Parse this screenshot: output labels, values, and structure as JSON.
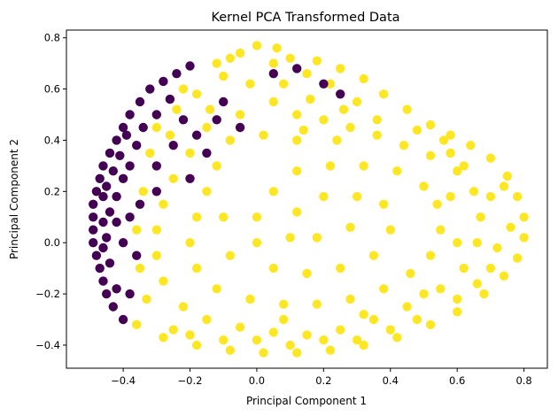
{
  "chart_data": {
    "type": "scatter",
    "title": "Kernel PCA Transformed Data",
    "xlabel": "Principal Component 1",
    "ylabel": "Principal Component 2",
    "xlim": [
      -0.57,
      0.87
    ],
    "ylim": [
      -0.49,
      0.83
    ],
    "xticks": [
      -0.4,
      -0.2,
      0.0,
      0.2,
      0.4,
      0.6,
      0.8
    ],
    "xtick_labels": [
      "−0.4",
      "−0.2",
      "0.0",
      "0.2",
      "0.4",
      "0.6",
      "0.8"
    ],
    "yticks": [
      -0.4,
      -0.2,
      0.0,
      0.2,
      0.4,
      0.6,
      0.8
    ],
    "ytick_labels": [
      "−0.4",
      "−0.2",
      "0.0",
      "0.2",
      "0.4",
      "0.6",
      "0.8"
    ],
    "grid": false,
    "legend": "none",
    "colors": {
      "class_0": "#440154",
      "class_1": "#fde725"
    },
    "series": [
      {
        "color": "#fde725",
        "points": [
          [
            0.0,
            0.77
          ],
          [
            -0.05,
            0.74
          ],
          [
            0.06,
            0.76
          ],
          [
            -0.12,
            0.7
          ],
          [
            0.1,
            0.72
          ],
          [
            0.18,
            0.71
          ],
          [
            0.25,
            0.68
          ],
          [
            0.32,
            0.64
          ],
          [
            0.38,
            0.58
          ],
          [
            0.45,
            0.52
          ],
          [
            0.52,
            0.46
          ],
          [
            0.58,
            0.42
          ],
          [
            0.64,
            0.38
          ],
          [
            0.7,
            0.33
          ],
          [
            0.75,
            0.26
          ],
          [
            0.78,
            0.18
          ],
          [
            0.8,
            0.1
          ],
          [
            0.8,
            0.02
          ],
          [
            0.78,
            -0.06
          ],
          [
            0.74,
            -0.13
          ],
          [
            0.68,
            -0.2
          ],
          [
            0.6,
            -0.27
          ],
          [
            0.52,
            -0.32
          ],
          [
            0.42,
            -0.37
          ],
          [
            0.32,
            -0.4
          ],
          [
            0.22,
            -0.42
          ],
          [
            0.12,
            -0.43
          ],
          [
            0.02,
            -0.43
          ],
          [
            -0.08,
            -0.42
          ],
          [
            -0.18,
            -0.4
          ],
          [
            -0.28,
            -0.37
          ],
          [
            -0.36,
            -0.32
          ],
          [
            -0.3,
            0.45
          ],
          [
            -0.24,
            0.52
          ],
          [
            -0.18,
            0.58
          ],
          [
            -0.1,
            0.65
          ],
          [
            0.05,
            0.7
          ],
          [
            0.15,
            0.66
          ],
          [
            0.22,
            0.62
          ],
          [
            0.3,
            0.55
          ],
          [
            0.05,
            0.55
          ],
          [
            0.12,
            0.5
          ],
          [
            -0.05,
            0.5
          ],
          [
            -0.15,
            0.45
          ],
          [
            -0.2,
            0.35
          ],
          [
            -0.25,
            0.25
          ],
          [
            -0.28,
            0.15
          ],
          [
            -0.3,
            0.05
          ],
          [
            -0.3,
            -0.05
          ],
          [
            -0.28,
            -0.15
          ],
          [
            -0.22,
            -0.25
          ],
          [
            -0.15,
            -0.3
          ],
          [
            -0.05,
            -0.33
          ],
          [
            0.05,
            -0.35
          ],
          [
            0.15,
            -0.36
          ],
          [
            0.25,
            -0.34
          ],
          [
            0.35,
            -0.3
          ],
          [
            0.45,
            -0.25
          ],
          [
            0.55,
            -0.18
          ],
          [
            0.62,
            -0.1
          ],
          [
            0.66,
            0.0
          ],
          [
            0.67,
            0.1
          ],
          [
            0.65,
            0.2
          ],
          [
            0.6,
            0.28
          ],
          [
            0.52,
            0.34
          ],
          [
            0.44,
            0.38
          ],
          [
            0.36,
            0.42
          ],
          [
            0.28,
            0.45
          ],
          [
            0.2,
            0.48
          ],
          [
            0.12,
            0.4
          ],
          [
            0.02,
            0.42
          ],
          [
            -0.08,
            0.4
          ],
          [
            -0.12,
            0.3
          ],
          [
            -0.15,
            0.2
          ],
          [
            -0.18,
            0.1
          ],
          [
            -0.2,
            0.0
          ],
          [
            -0.18,
            -0.1
          ],
          [
            -0.12,
            -0.18
          ],
          [
            -0.02,
            -0.22
          ],
          [
            0.08,
            -0.24
          ],
          [
            0.18,
            -0.24
          ],
          [
            0.28,
            -0.22
          ],
          [
            0.38,
            -0.18
          ],
          [
            0.46,
            -0.12
          ],
          [
            0.52,
            -0.05
          ],
          [
            0.55,
            0.05
          ],
          [
            0.54,
            0.15
          ],
          [
            0.5,
            0.22
          ],
          [
            0.42,
            0.28
          ],
          [
            0.32,
            0.3
          ],
          [
            0.22,
            0.3
          ],
          [
            0.12,
            0.28
          ],
          [
            0.05,
            0.2
          ],
          [
            0.0,
            0.1
          ],
          [
            0.0,
            0.0
          ],
          [
            0.05,
            -0.1
          ],
          [
            0.15,
            -0.12
          ],
          [
            0.25,
            -0.1
          ],
          [
            0.35,
            -0.05
          ],
          [
            0.4,
            0.05
          ],
          [
            0.38,
            0.15
          ],
          [
            0.3,
            0.18
          ],
          [
            0.2,
            0.18
          ],
          [
            0.12,
            0.12
          ],
          [
            0.1,
            0.02
          ],
          [
            0.18,
            0.02
          ],
          [
            0.28,
            0.06
          ],
          [
            -0.1,
            0.1
          ],
          [
            -0.08,
            -0.05
          ],
          [
            0.58,
            0.35
          ],
          [
            0.7,
            0.18
          ],
          [
            0.72,
            -0.02
          ],
          [
            0.66,
            -0.16
          ],
          [
            0.48,
            -0.3
          ],
          [
            0.3,
            -0.38
          ],
          [
            0.1,
            -0.4
          ],
          [
            -0.1,
            -0.38
          ],
          [
            -0.25,
            -0.34
          ],
          [
            -0.32,
            0.35
          ],
          [
            -0.34,
            0.2
          ],
          [
            -0.36,
            0.05
          ],
          [
            -0.35,
            -0.1
          ],
          [
            -0.33,
            -0.22
          ],
          [
            -0.26,
            0.42
          ],
          [
            -0.22,
            0.6
          ],
          [
            -0.08,
            0.72
          ],
          [
            0.08,
            0.62
          ],
          [
            0.16,
            0.56
          ],
          [
            0.26,
            0.52
          ],
          [
            0.36,
            0.48
          ],
          [
            0.48,
            0.44
          ],
          [
            0.56,
            0.4
          ],
          [
            0.62,
            0.3
          ],
          [
            0.74,
            0.22
          ],
          [
            0.76,
            0.06
          ],
          [
            0.7,
            -0.1
          ],
          [
            0.6,
            -0.22
          ],
          [
            0.4,
            -0.34
          ],
          [
            0.2,
            -0.38
          ],
          [
            0.0,
            -0.38
          ],
          [
            -0.2,
            -0.36
          ],
          [
            0.08,
            -0.3
          ],
          [
            0.32,
            -0.28
          ],
          [
            0.5,
            -0.2
          ],
          [
            0.6,
            0.0
          ],
          [
            0.58,
            0.18
          ],
          [
            -0.14,
            0.52
          ],
          [
            -0.02,
            0.62
          ],
          [
            0.14,
            0.44
          ],
          [
            0.24,
            0.4
          ]
        ]
      },
      {
        "color": "#440154",
        "points": [
          [
            -0.48,
            0.2
          ],
          [
            -0.49,
            0.15
          ],
          [
            -0.49,
            0.1
          ],
          [
            -0.49,
            0.05
          ],
          [
            -0.49,
            0.0
          ],
          [
            -0.48,
            -0.05
          ],
          [
            -0.47,
            -0.1
          ],
          [
            -0.46,
            -0.15
          ],
          [
            -0.45,
            -0.2
          ],
          [
            -0.43,
            -0.25
          ],
          [
            -0.4,
            -0.3
          ],
          [
            -0.47,
            0.25
          ],
          [
            -0.46,
            0.3
          ],
          [
            -0.44,
            0.35
          ],
          [
            -0.42,
            0.4
          ],
          [
            -0.4,
            0.45
          ],
          [
            -0.38,
            0.5
          ],
          [
            -0.35,
            0.55
          ],
          [
            -0.32,
            0.6
          ],
          [
            -0.28,
            0.63
          ],
          [
            -0.24,
            0.66
          ],
          [
            -0.2,
            0.69
          ],
          [
            -0.45,
            0.22
          ],
          [
            -0.44,
            0.12
          ],
          [
            -0.45,
            0.02
          ],
          [
            -0.44,
            -0.08
          ],
          [
            -0.42,
            -0.18
          ],
          [
            -0.43,
            0.28
          ],
          [
            -0.41,
            0.34
          ],
          [
            -0.39,
            0.42
          ],
          [
            -0.46,
            0.18
          ],
          [
            -0.46,
            0.08
          ],
          [
            -0.46,
            -0.02
          ],
          [
            -0.42,
            0.08
          ],
          [
            -0.42,
            0.18
          ],
          [
            -0.4,
            0.25
          ],
          [
            -0.4,
            0.0
          ],
          [
            -0.38,
            0.3
          ],
          [
            -0.36,
            0.38
          ],
          [
            -0.34,
            0.45
          ],
          [
            -0.3,
            0.5
          ],
          [
            -0.26,
            0.56
          ],
          [
            -0.22,
            0.48
          ],
          [
            -0.18,
            0.42
          ],
          [
            -0.25,
            0.38
          ],
          [
            -0.3,
            0.3
          ],
          [
            -0.15,
            0.35
          ],
          [
            -0.1,
            0.55
          ],
          [
            -0.05,
            0.45
          ],
          [
            0.12,
            0.68
          ],
          [
            0.2,
            0.62
          ],
          [
            0.25,
            0.58
          ],
          [
            -0.38,
            0.1
          ],
          [
            -0.36,
            -0.05
          ],
          [
            -0.38,
            -0.2
          ],
          [
            -0.3,
            0.2
          ],
          [
            -0.2,
            0.25
          ],
          [
            -0.35,
            0.15
          ],
          [
            -0.12,
            0.48
          ],
          [
            0.05,
            0.66
          ]
        ]
      }
    ]
  }
}
